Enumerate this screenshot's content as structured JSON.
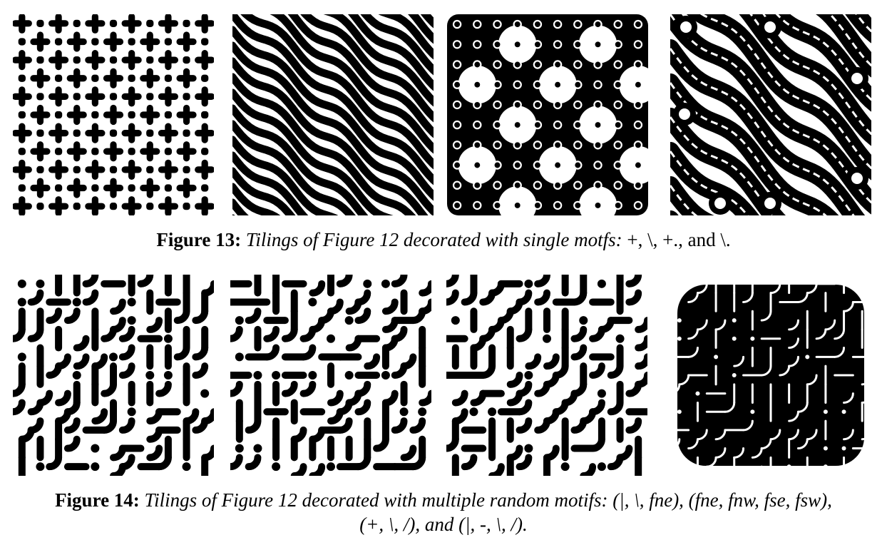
{
  "figure13": {
    "label": "Figure 13:",
    "text": "Tilings of Figure 12 decorated with single motfs:",
    "motifs": "+, \\, +., and \\."
  },
  "figure14": {
    "label": "Figure 14:",
    "text_line1": "Tilings of Figure 12 decorated with multiple random motifs: (|, \\, fne), (fne, fnw, fse, fsw),",
    "text_line2": "(+, \\, /), and (|, -, \\, /)."
  },
  "tiles": [
    {
      "id": "f13-plus",
      "motif": "plus"
    },
    {
      "id": "f13-backslash",
      "motif": "wave"
    },
    {
      "id": "f13-plus-dot",
      "motif": "dots"
    },
    {
      "id": "f13-backslash-dot",
      "motif": "ring"
    },
    {
      "id": "f14-a",
      "motif": "random-a"
    },
    {
      "id": "f14-b",
      "motif": "random-b"
    },
    {
      "id": "f14-c",
      "motif": "random-c"
    },
    {
      "id": "f14-d",
      "motif": "random-d"
    }
  ]
}
